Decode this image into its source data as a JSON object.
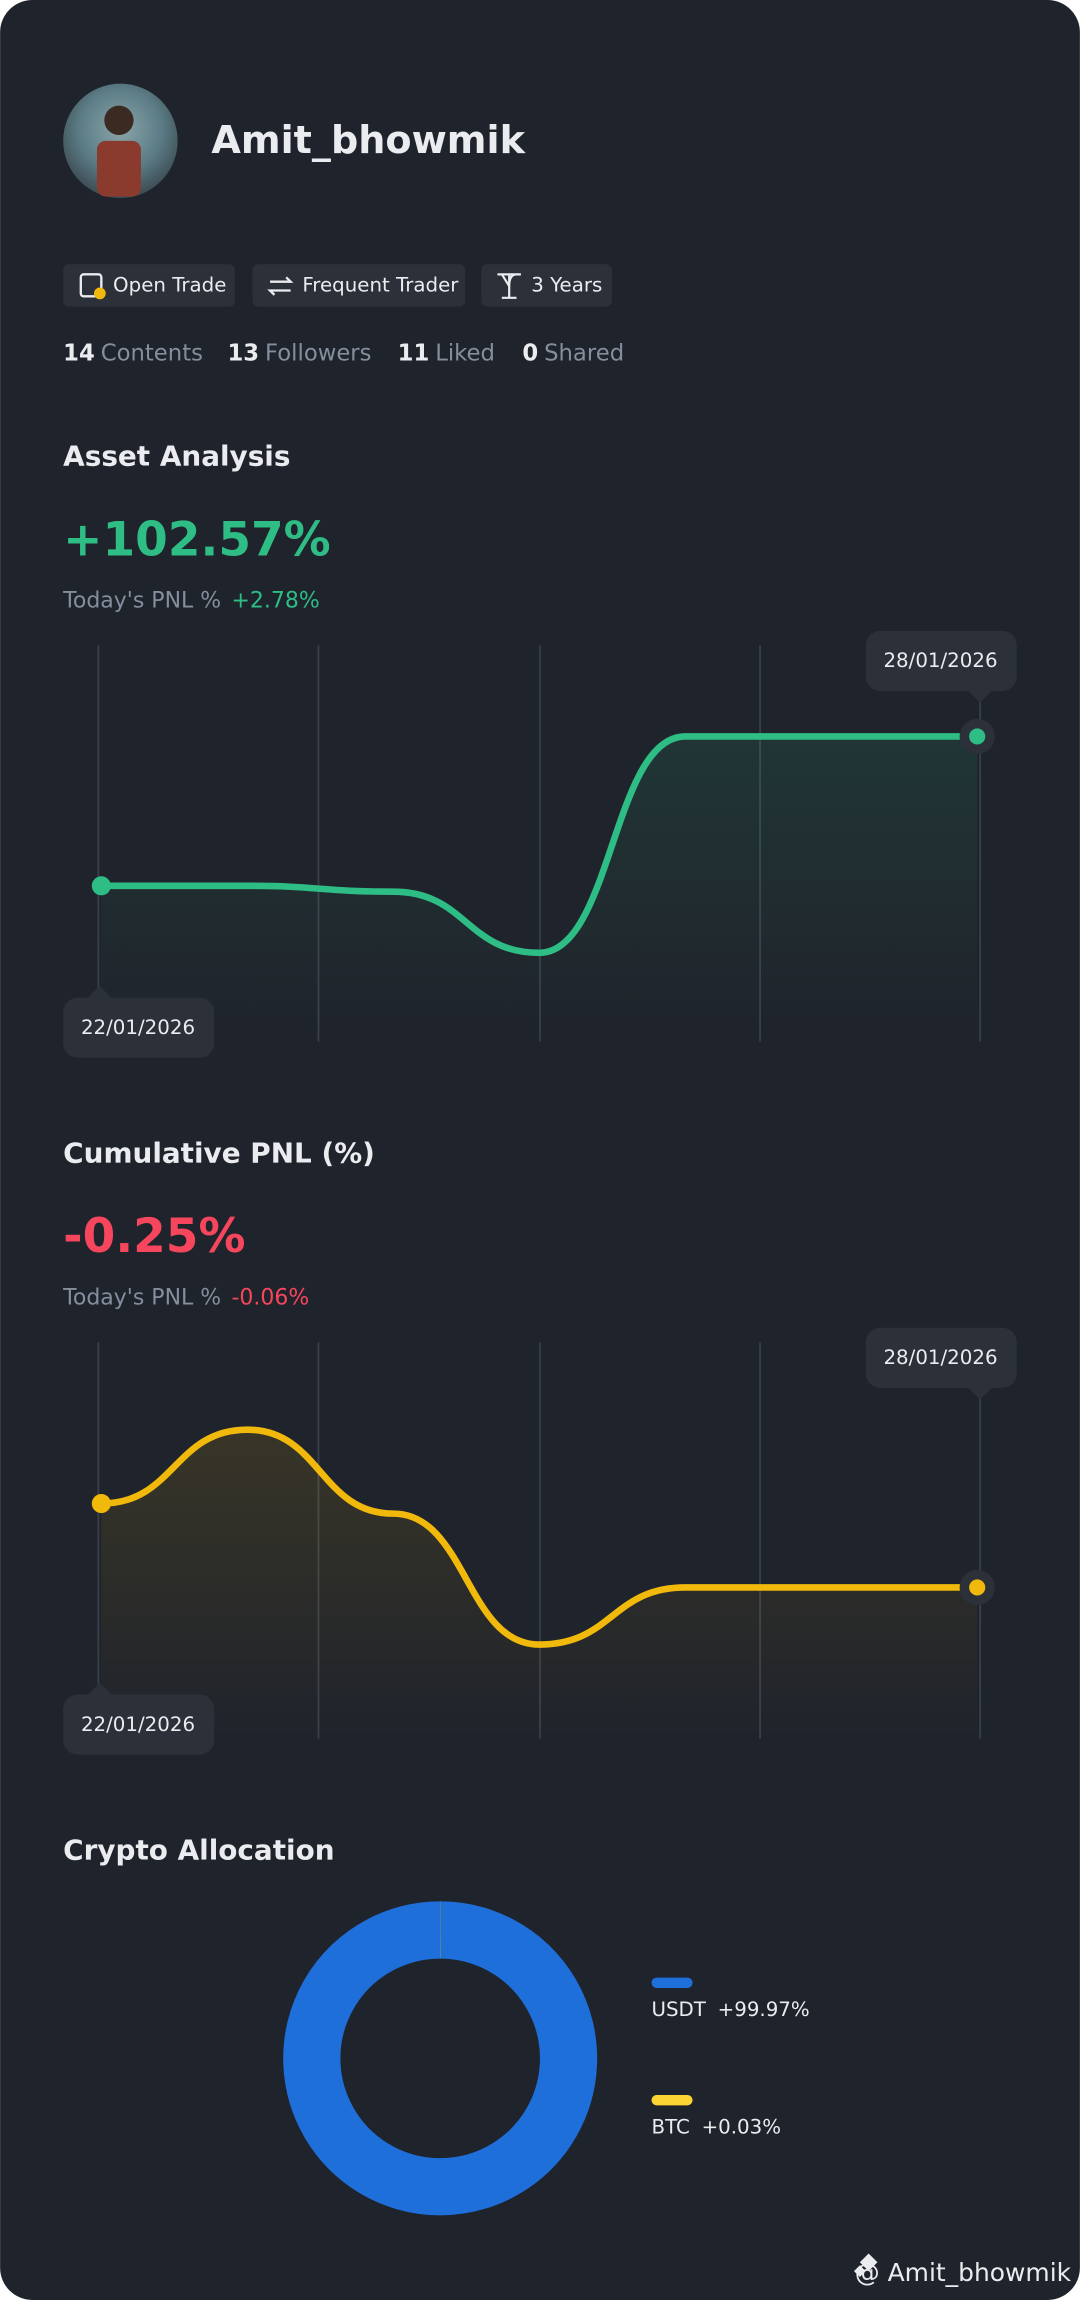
{
  "profile": {
    "username": "Amit_bhowmik"
  },
  "badges": [
    "Open Trade",
    "Frequent Trader",
    "3 Years"
  ],
  "stats": [
    {
      "value": 14,
      "label": "Contents"
    },
    {
      "value": 13,
      "label": "Followers"
    },
    {
      "value": 11,
      "label": "Liked"
    },
    {
      "value": 0,
      "label": "Shared"
    }
  ],
  "chart_data": [
    {
      "type": "line",
      "title": "Asset Analysis",
      "headline": "+102.57%",
      "headline_color": "#2ebd85",
      "pnl_label": "Today's PNL %",
      "pnl_value": "+2.78%",
      "categories": [
        "22/01/2026",
        null,
        null,
        null,
        null,
        null,
        "28/01/2026"
      ],
      "values": [
        0,
        0,
        -4,
        -46,
        102.57,
        102.57,
        102.57
      ],
      "ylim": [
        -107,
        165
      ],
      "color": "#2ebd85"
    },
    {
      "type": "line",
      "title": "Cumulative PNL (%)",
      "headline": "-0.25%",
      "headline_color": "#f6465d",
      "pnl_label": "Today's PNL %",
      "pnl_value": "-0.06%",
      "categories": [
        "22/01/2026",
        null,
        null,
        null,
        null,
        null,
        "28/01/2026"
      ],
      "values": [
        0,
        0.22,
        -0.03,
        -0.42,
        -0.25,
        -0.25,
        -0.25
      ],
      "ylim": [
        -0.7,
        0.48
      ],
      "color": "#f0b90b"
    },
    {
      "type": "donut",
      "title": "Crypto Allocation",
      "categories": [
        "USDT",
        "BTC"
      ],
      "values": [
        99.97,
        0.03
      ],
      "value_labels": [
        "+99.97%",
        "+0.03%"
      ],
      "colors": [
        "#1f6fdb",
        "#fcd535"
      ]
    }
  ],
  "watermark": "@ Amit_bhowmik"
}
